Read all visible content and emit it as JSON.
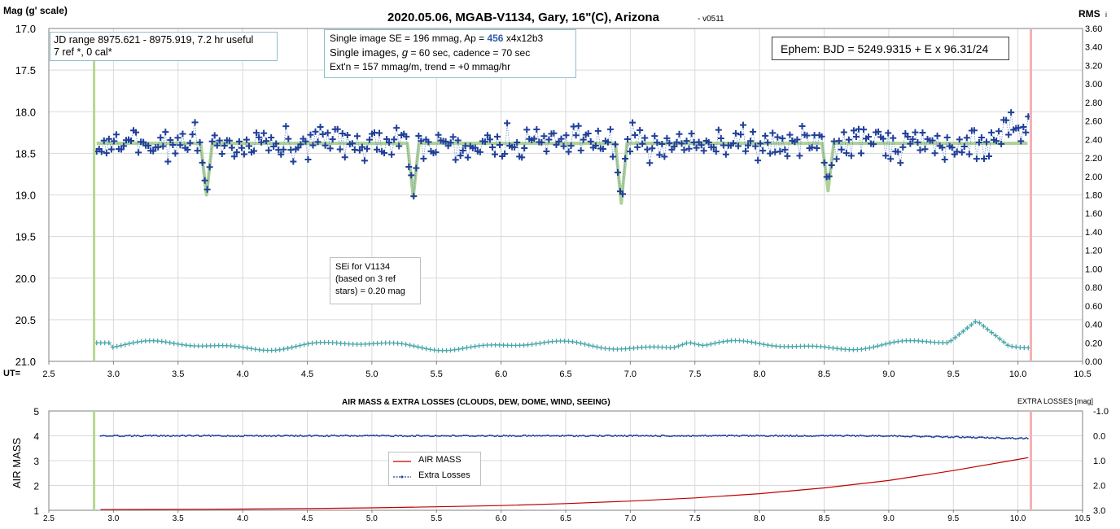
{
  "chart_data": [
    {
      "type": "scatter",
      "title": "2020.05.06, MGAB-V1134, Gary, 16\"(C), Arizona",
      "version_tag": "- v0511",
      "ylabel": "Mag (g' scale)",
      "y2label": "RMS",
      "y2label_sub": "i",
      "xlabel": "UT=",
      "xlim": [
        2.5,
        10.5
      ],
      "ylim": [
        17.0,
        21.0
      ],
      "y_reversed": true,
      "y2lim": [
        0.0,
        3.6
      ],
      "x_ticks": [
        "2.5",
        "3.0",
        "3.5",
        "4.0",
        "4.5",
        "5.0",
        "5.5",
        "6.0",
        "6.5",
        "7.0",
        "7.5",
        "8.0",
        "8.5",
        "9.0",
        "9.5",
        "10.0",
        "10.5"
      ],
      "y_ticks": [
        "17.0",
        "17.5",
        "18.0",
        "18.5",
        "19.0",
        "19.5",
        "20.0",
        "20.5",
        "21.0"
      ],
      "y2_ticks": [
        "3.60",
        "3.40",
        "3.20",
        "3.00",
        "2.80",
        "2.60",
        "2.40",
        "2.20",
        "2.00",
        "1.80",
        "1.60",
        "1.40",
        "1.20",
        "1.00",
        "0.80",
        "0.60",
        "0.40",
        "0.20",
        "0.00"
      ],
      "grid": true,
      "start_marker_ut": 2.85,
      "end_marker_ut": 10.1,
      "model_baseline_mag": 18.38,
      "eclipses": [
        {
          "ut": 3.72,
          "depth_mag": 19.0
        },
        {
          "ut": 5.32,
          "depth_mag": 19.02
        },
        {
          "ut": 6.93,
          "depth_mag": 19.1
        },
        {
          "ut": 8.53,
          "depth_mag": 18.95
        }
      ],
      "mag_series_range": [
        2.87,
        10.08
      ],
      "mag_sample_count": 380,
      "mag_scatter_center": 18.38,
      "rms_sample_count": 230,
      "rms_level_typical": 0.17,
      "rms_peak": {
        "ut": 9.68,
        "value": 0.44
      },
      "annotations": {
        "jd_box": [
          "JD range 8975.621 - 8975.919, 7.2 hr useful",
          "7 ref *, 0 cal*"
        ],
        "se_line_a": "Single image SE = 196 mmag, Ap = ",
        "se_line_ap": "456",
        "se_line_b": " x4x12b3",
        "se_line2_a": "Single images, ",
        "se_line2_g": "g",
        "se_line2_b": " = 60 sec, cadence = 70 sec",
        "se_line3": "Ext'n = 157 mmag/m, trend = +0 mmag/hr",
        "ephem": "Ephem: BJD = 5249.9315 + E x 96.31/24",
        "sei": [
          "SEi for V1134",
          "(based on 3 ref",
          "stars) = 0.20 mag"
        ]
      },
      "colors": {
        "mag_points": "#1f3f99",
        "mag_line": "#5b7fd0",
        "model": "#a4cc8c",
        "rms": "#4aa7a8",
        "start_line": "#b5d98e",
        "end_line": "#f4b2b6",
        "grid": "#d9d9d9"
      }
    },
    {
      "type": "line",
      "title": "AIR MASS & EXTRA LOSSES (CLOUDS, DEW, DOME, WIND, SEEING)",
      "ylabel": "AIR MASS",
      "y2label": "EXTRA LOSSES [mag]",
      "xlim": [
        2.5,
        10.5
      ],
      "ylim": [
        1,
        5
      ],
      "y2lim": [
        -1.0,
        3.0
      ],
      "y2_reversed": true,
      "x_ticks": [
        "2.5",
        "3.0",
        "3.5",
        "4.0",
        "4.5",
        "5.0",
        "5.5",
        "6.0",
        "6.5",
        "7.0",
        "7.5",
        "8.0",
        "8.5",
        "9.0",
        "9.5",
        "10.0",
        "10.5"
      ],
      "y_ticks": [
        "5",
        "4",
        "3",
        "2",
        "1"
      ],
      "y2_ticks": [
        "-1.0",
        "0.0",
        "1.0",
        "2.0",
        "3.0"
      ],
      "legend": [
        "AIR MASS",
        "Extra Losses"
      ],
      "legend_position": "center",
      "series": [
        {
          "name": "AIR MASS",
          "x": [
            2.9,
            3.5,
            4.0,
            4.5,
            5.0,
            5.5,
            6.0,
            6.5,
            7.0,
            7.5,
            8.0,
            8.5,
            9.0,
            9.5,
            10.0,
            10.08
          ],
          "values": [
            1.03,
            1.04,
            1.05,
            1.07,
            1.1,
            1.14,
            1.19,
            1.27,
            1.37,
            1.5,
            1.67,
            1.9,
            2.2,
            2.6,
            3.05,
            3.12
          ]
        },
        {
          "name": "Extra Losses",
          "x": [
            2.9,
            4.0,
            5.0,
            6.0,
            7.0,
            8.0,
            9.0,
            9.5,
            9.8,
            10.0,
            10.08
          ],
          "values": [
            0.0,
            0.0,
            0.0,
            0.0,
            0.0,
            0.0,
            0.0,
            0.05,
            0.08,
            0.1,
            0.1
          ]
        }
      ],
      "colors": {
        "airmass": "#c00000",
        "losses": "#1f3f99"
      }
    }
  ]
}
